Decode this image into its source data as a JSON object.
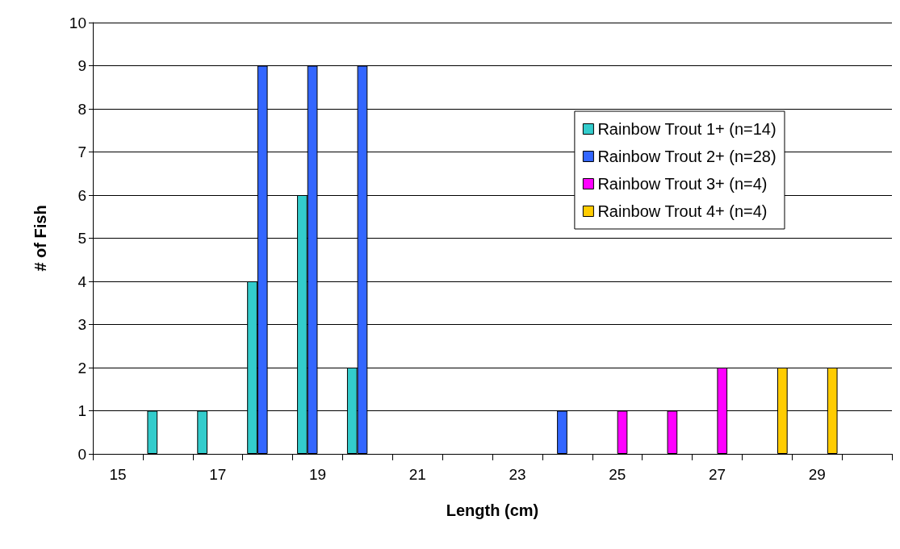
{
  "chart_data": {
    "type": "bar",
    "xlabel": "Length (cm)",
    "ylabel": "# of Fish",
    "categories": [
      "15",
      null,
      "17",
      null,
      "19",
      null,
      "21",
      null,
      "23",
      null,
      "25",
      null,
      "27",
      null,
      "29",
      null
    ],
    "series": [
      {
        "name": "Rainbow Trout 1+ (n=14)",
        "color": "#33cccc",
        "values": [
          null,
          1,
          1,
          4,
          6,
          2,
          null,
          null,
          null,
          null,
          null,
          null,
          null,
          null,
          null,
          null
        ]
      },
      {
        "name": "Rainbow Trout 2+ (n=28)",
        "color": "#3366ff",
        "values": [
          null,
          null,
          null,
          9,
          9,
          9,
          null,
          null,
          null,
          1,
          null,
          null,
          null,
          null,
          null,
          null
        ]
      },
      {
        "name": "Rainbow Trout 3+ (n=4)",
        "color": "#ff00ff",
        "values": [
          null,
          null,
          null,
          null,
          null,
          null,
          null,
          null,
          null,
          null,
          1,
          1,
          2,
          null,
          null,
          null
        ]
      },
      {
        "name": "Rainbow Trout 4+ (n=4)",
        "color": "#ffcc00",
        "values": [
          null,
          null,
          null,
          null,
          null,
          null,
          null,
          null,
          null,
          null,
          null,
          null,
          null,
          2,
          2,
          null
        ]
      }
    ],
    "ylim": [
      0,
      10
    ],
    "yticks": [
      0,
      1,
      2,
      3,
      4,
      5,
      6,
      7,
      8,
      9,
      10
    ],
    "grid": "y",
    "legend": "right"
  }
}
